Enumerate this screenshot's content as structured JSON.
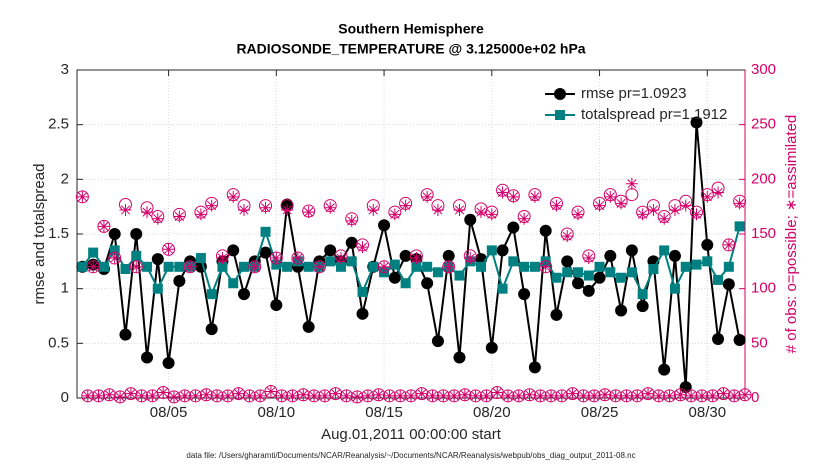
{
  "chart_data": {
    "type": "line",
    "title": "Southern Hemisphere",
    "subtitle": "RADIOSONDE_TEMPERATURE @ 3.125000e+02 hPa",
    "xlabel": "Aug.01,2011 00:00:00 start",
    "ylabel": "rmse and totalspread",
    "y2label": "# of obs: o=possible; ∗=assimilated",
    "footnote": "data file: /Users/gharamti/Documents/NCAR/Reanalysis/~/Documents/NCAR/Reanalysis/webpub/obs_diag_output_2011-08.nc",
    "xlim": [
      0.75,
      31.75
    ],
    "xticks": [
      {
        "value": 5,
        "label": "08/05"
      },
      {
        "value": 10,
        "label": "08/10"
      },
      {
        "value": 15,
        "label": "08/15"
      },
      {
        "value": 20,
        "label": "08/20"
      },
      {
        "value": 25,
        "label": "08/25"
      },
      {
        "value": 30,
        "label": "08/30"
      }
    ],
    "ylim": [
      0,
      3
    ],
    "yticks": [
      0,
      0.5,
      1,
      1.5,
      2,
      2.5,
      3
    ],
    "y2lim": [
      0,
      300
    ],
    "y2ticks": [
      0,
      50,
      100,
      150,
      200,
      250,
      300
    ],
    "y2color": "#d4006a",
    "grid": true,
    "legend": "northeast",
    "x": [
      1,
      1.5,
      2,
      2.5,
      3,
      3.5,
      4,
      4.5,
      5,
      5.5,
      6,
      6.5,
      7,
      7.5,
      8,
      8.5,
      9,
      9.5,
      10,
      10.5,
      11,
      11.5,
      12,
      12.5,
      13,
      13.5,
      14,
      14.5,
      15,
      15.5,
      16,
      16.5,
      17,
      17.5,
      18,
      18.5,
      19,
      19.5,
      20,
      20.5,
      21,
      21.5,
      22,
      22.5,
      23,
      23.5,
      24,
      24.5,
      25,
      25.5,
      26,
      26.5,
      27,
      27.5,
      28,
      28.5,
      29,
      29.5,
      30,
      30.5,
      31,
      31.5
    ],
    "series": [
      {
        "name": "rmse pr=1.0923",
        "color": "#000000",
        "marker": "circle",
        "values": [
          1.2,
          1.22,
          1.18,
          1.5,
          0.58,
          1.5,
          0.37,
          1.27,
          0.32,
          1.07,
          1.25,
          1.2,
          0.63,
          1.25,
          1.35,
          0.95,
          1.25,
          1.33,
          0.85,
          1.77,
          1.2,
          0.65,
          1.25,
          1.35,
          1.25,
          1.42,
          0.77,
          1.2,
          1.58,
          1.1,
          1.3,
          1.27,
          1.05,
          0.52,
          1.3,
          0.37,
          1.63,
          1.27,
          0.46,
          1.35,
          1.56,
          0.95,
          0.28,
          1.53,
          0.76,
          1.25,
          1.05,
          0.98,
          1.1,
          1.3,
          0.8,
          1.35,
          0.84,
          1.25,
          0.26,
          1.3,
          0.1,
          2.52,
          1.4,
          0.54,
          1.04,
          0.53
        ]
      },
      {
        "name": "totalspread pr=1.1912",
        "color": "#008080",
        "marker": "square",
        "values": [
          1.2,
          1.33,
          1.2,
          1.35,
          1.18,
          1.3,
          1.2,
          1.0,
          1.2,
          1.2,
          1.2,
          1.28,
          0.95,
          1.2,
          1.05,
          1.2,
          1.2,
          1.52,
          1.22,
          1.2,
          1.25,
          1.2,
          1.2,
          1.25,
          1.2,
          1.25,
          0.97,
          1.2,
          1.15,
          1.22,
          1.05,
          1.2,
          1.2,
          1.15,
          1.2,
          1.12,
          1.25,
          1.2,
          1.35,
          1.0,
          1.25,
          1.2,
          1.2,
          1.25,
          1.1,
          1.15,
          1.15,
          1.12,
          1.2,
          1.15,
          1.1,
          1.15,
          0.95,
          1.18,
          1.35,
          1.0,
          1.2,
          1.22,
          1.25,
          1.08,
          1.2,
          1.57
        ]
      },
      {
        "axis": "y2",
        "color": "#d4006a",
        "marker": "circle-open",
        "values": [
          184,
          120,
          157,
          128,
          177,
          120,
          174,
          166,
          136,
          168,
          120,
          170,
          178,
          130,
          186,
          176,
          120,
          176,
          128,
          176,
          128,
          171,
          120,
          176,
          130,
          164,
          140,
          176,
          120,
          170,
          178,
          130,
          186,
          176,
          120,
          176,
          130,
          173,
          170,
          190,
          185,
          166,
          186,
          120,
          178,
          150,
          170,
          130,
          178,
          186,
          180,
          186,
          170,
          176,
          166,
          176,
          180,
          170,
          186,
          192,
          140,
          180
        ]
      },
      {
        "axis": "y2",
        "color": "#d4006a",
        "marker": "asterisk",
        "values": [
          184,
          120,
          157,
          128,
          172,
          120,
          170,
          164,
          136,
          166,
          120,
          168,
          176,
          128,
          184,
          172,
          120,
          174,
          128,
          172,
          128,
          170,
          120,
          174,
          128,
          162,
          138,
          172,
          120,
          168,
          176,
          128,
          184,
          172,
          120,
          172,
          128,
          170,
          168,
          188,
          184,
          164,
          184,
          120,
          176,
          148,
          168,
          128,
          176,
          184,
          178,
          196,
          168,
          172,
          164,
          172,
          176,
          168,
          184,
          188,
          140,
          178
        ]
      },
      {
        "axis": "y2",
        "color": "#d4006a",
        "marker": "circle-open",
        "x": [
          1.25,
          1.75,
          2.25,
          2.75,
          3.25,
          3.75,
          4.25,
          4.75,
          5.25,
          5.75,
          6.25,
          6.75,
          7.25,
          7.75,
          8.25,
          8.75,
          9.25,
          9.75,
          10.25,
          10.75,
          11.25,
          11.75,
          12.25,
          12.75,
          13.25,
          13.75,
          14.25,
          14.75,
          15.25,
          15.75,
          16.25,
          16.75,
          17.25,
          17.75,
          18.25,
          18.75,
          19.25,
          19.75,
          20.25,
          20.75,
          21.25,
          21.75,
          22.25,
          22.75,
          23.25,
          23.75,
          24.25,
          24.75,
          25.25,
          25.75,
          26.25,
          26.75,
          27.25,
          27.75,
          28.25,
          28.75,
          29.25,
          29.75,
          30.25,
          30.75,
          31.25,
          31.75
        ],
        "values": [
          2,
          2,
          3,
          1,
          4,
          2,
          2,
          5,
          1,
          2,
          2,
          3,
          2,
          2,
          4,
          2,
          2,
          6,
          2,
          2,
          3,
          2,
          2,
          4,
          2,
          1,
          2,
          3,
          2,
          2,
          2,
          4,
          2,
          2,
          2,
          3,
          2,
          2,
          5,
          2,
          2,
          3,
          2,
          2,
          2,
          4,
          2,
          2,
          3,
          2,
          2,
          2,
          4,
          2,
          2,
          3,
          2,
          2,
          2,
          4,
          2,
          3
        ]
      },
      {
        "axis": "y2",
        "color": "#d4006a",
        "marker": "asterisk",
        "x": [
          1.25,
          1.75,
          2.25,
          2.75,
          3.25,
          3.75,
          4.25,
          4.75,
          5.25,
          5.75,
          6.25,
          6.75,
          7.25,
          7.75,
          8.25,
          8.75,
          9.25,
          9.75,
          10.25,
          10.75,
          11.25,
          11.75,
          12.25,
          12.75,
          13.25,
          13.75,
          14.25,
          14.75,
          15.25,
          15.75,
          16.25,
          16.75,
          17.25,
          17.75,
          18.25,
          18.75,
          19.25,
          19.75,
          20.25,
          20.75,
          21.25,
          21.75,
          22.25,
          22.75,
          23.25,
          23.75,
          24.25,
          24.75,
          25.25,
          25.75,
          26.25,
          26.75,
          27.25,
          27.75,
          28.25,
          28.75,
          29.25,
          29.75,
          30.25,
          30.75,
          31.25,
          31.75
        ],
        "values": [
          2,
          2,
          3,
          1,
          4,
          2,
          2,
          5,
          1,
          2,
          2,
          3,
          2,
          2,
          4,
          2,
          2,
          6,
          2,
          2,
          3,
          2,
          2,
          4,
          2,
          1,
          2,
          3,
          2,
          2,
          2,
          4,
          2,
          2,
          2,
          3,
          2,
          2,
          5,
          2,
          2,
          3,
          2,
          2,
          2,
          4,
          2,
          2,
          3,
          2,
          2,
          2,
          4,
          2,
          2,
          3,
          2,
          2,
          2,
          4,
          2,
          3
        ]
      }
    ]
  }
}
